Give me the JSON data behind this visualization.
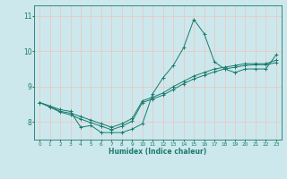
{
  "xlabel": "Humidex (Indice chaleur)",
  "background_color": "#cce8ec",
  "grid_color": "#e8c8c8",
  "line_color": "#1a7a6e",
  "xlim": [
    -0.5,
    23.5
  ],
  "ylim": [
    7.5,
    11.3
  ],
  "yticks": [
    8,
    9,
    10,
    11
  ],
  "xticks": [
    0,
    1,
    2,
    3,
    4,
    5,
    6,
    7,
    8,
    9,
    10,
    11,
    12,
    13,
    14,
    15,
    16,
    17,
    18,
    19,
    20,
    21,
    22,
    23
  ],
  "series1": {
    "x": [
      0,
      1,
      2,
      3,
      4,
      5,
      6,
      7,
      8,
      9,
      10,
      11,
      12,
      13,
      14,
      15,
      16,
      17,
      18,
      19,
      20,
      21,
      22,
      23
    ],
    "y": [
      8.55,
      8.45,
      8.35,
      8.3,
      7.85,
      7.9,
      7.7,
      7.7,
      7.7,
      7.8,
      7.95,
      8.8,
      9.25,
      9.6,
      10.1,
      10.9,
      10.5,
      9.7,
      9.5,
      9.4,
      9.5,
      9.5,
      9.5,
      9.9
    ]
  },
  "series2": {
    "x": [
      0,
      1,
      2,
      3,
      4,
      5,
      6,
      7,
      8,
      9,
      10,
      11,
      12,
      13,
      14,
      15,
      16,
      17,
      18,
      19,
      20,
      21,
      22,
      23
    ],
    "y": [
      8.55,
      8.45,
      8.3,
      8.25,
      8.15,
      8.05,
      7.95,
      7.85,
      7.95,
      8.1,
      8.6,
      8.7,
      8.82,
      9.0,
      9.15,
      9.3,
      9.4,
      9.5,
      9.55,
      9.6,
      9.65,
      9.65,
      9.65,
      9.75
    ]
  },
  "series3": {
    "x": [
      0,
      1,
      2,
      3,
      4,
      5,
      6,
      7,
      8,
      9,
      10,
      11,
      12,
      13,
      14,
      15,
      16,
      17,
      18,
      19,
      20,
      21,
      22,
      23
    ],
    "y": [
      8.55,
      8.42,
      8.28,
      8.2,
      8.08,
      7.98,
      7.88,
      7.78,
      7.88,
      8.02,
      8.55,
      8.65,
      8.76,
      8.92,
      9.08,
      9.22,
      9.32,
      9.42,
      9.5,
      9.55,
      9.6,
      9.62,
      9.62,
      9.68
    ]
  }
}
